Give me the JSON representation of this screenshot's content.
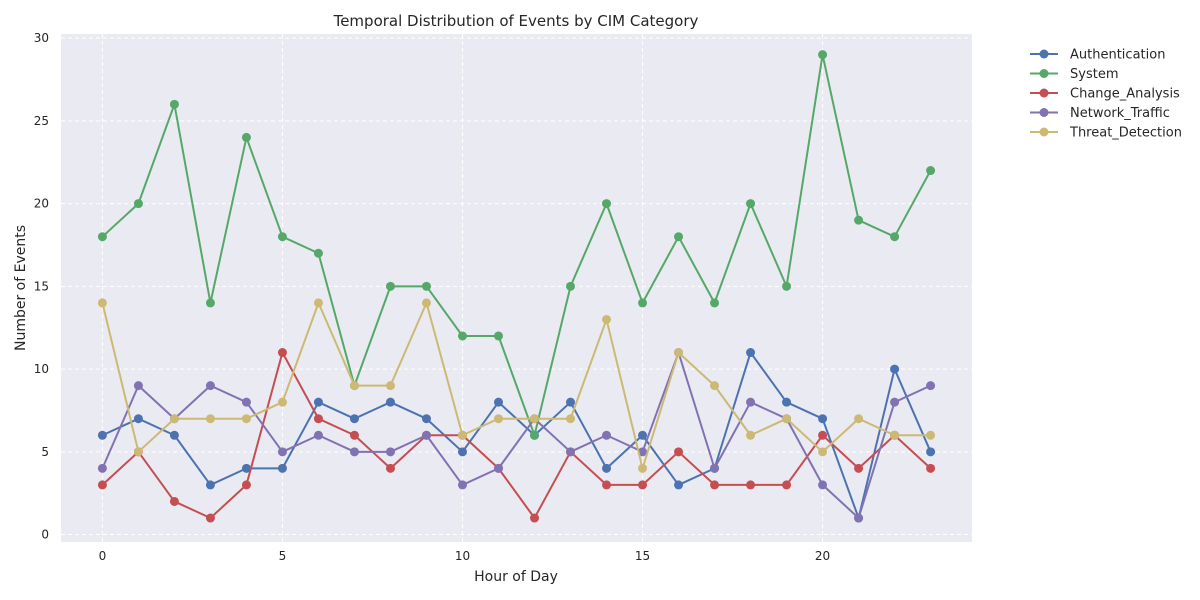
{
  "chart_data": {
    "type": "line",
    "title": "Temporal Distribution of Events by CIM Category",
    "xlabel": "Hour of Day",
    "ylabel": "Number of Events",
    "x": [
      0,
      1,
      2,
      3,
      4,
      5,
      6,
      7,
      8,
      9,
      10,
      11,
      12,
      13,
      14,
      15,
      16,
      17,
      18,
      19,
      20,
      21,
      22,
      23
    ],
    "xlim": [
      -1.15,
      24.15
    ],
    "ylim": [
      -0.45,
      30.25
    ],
    "xticks": [
      0,
      5,
      10,
      15,
      20
    ],
    "yticks": [
      0,
      5,
      10,
      15,
      20,
      25,
      30
    ],
    "grid": true,
    "legend_position": "outside-top-right",
    "background_color": "#EAEAF2",
    "series": [
      {
        "name": "Authentication",
        "color": "#4C72B0",
        "values": [
          6,
          7,
          6,
          3,
          4,
          4,
          8,
          7,
          8,
          7,
          5,
          8,
          6,
          8,
          4,
          6,
          3,
          4,
          11,
          8,
          7,
          1,
          10,
          5
        ]
      },
      {
        "name": "System",
        "color": "#55A868",
        "values": [
          18,
          20,
          26,
          14,
          24,
          18,
          17,
          9,
          15,
          15,
          12,
          12,
          6,
          15,
          20,
          14,
          18,
          14,
          20,
          15,
          29,
          19,
          18,
          22
        ]
      },
      {
        "name": "Change_Analysis",
        "color": "#C44E52",
        "values": [
          3,
          5,
          2,
          1,
          3,
          11,
          7,
          6,
          4,
          6,
          6,
          4,
          1,
          5,
          3,
          3,
          5,
          3,
          3,
          3,
          6,
          4,
          6,
          4
        ]
      },
      {
        "name": "Network_Traffic",
        "color": "#8172B2",
        "values": [
          4,
          9,
          7,
          9,
          8,
          5,
          6,
          5,
          5,
          6,
          3,
          4,
          7,
          5,
          6,
          5,
          11,
          4,
          8,
          7,
          3,
          1,
          8,
          9
        ]
      },
      {
        "name": "Threat_Detection",
        "color": "#CCB974",
        "values": [
          14,
          5,
          7,
          7,
          7,
          8,
          14,
          9,
          9,
          14,
          6,
          7,
          7,
          7,
          13,
          4,
          11,
          9,
          6,
          7,
          5,
          7,
          6,
          6
        ]
      }
    ]
  }
}
